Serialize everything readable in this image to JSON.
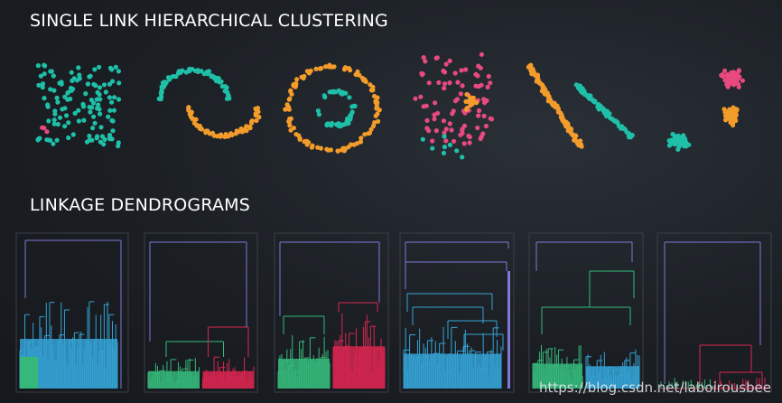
{
  "section_titles": {
    "clustering": "SINGLE LINK HIERARCHICAL CLUSTERING",
    "dendrograms": "LINKAGE DENDROGRAMS"
  },
  "watermark": "https://blog.csdn.net/laboirousbee",
  "colors": {
    "background": "#1b1f24",
    "teal": "#1fbfa8",
    "orange": "#f39c2b",
    "pink": "#e84a7f",
    "blue": "#35a3d6",
    "green": "#35b97a",
    "crimson": "#d82650",
    "purple": "#7f78d8",
    "panel_border": "#3a4048"
  },
  "scatter_plots": [
    {
      "name": "uniform-square",
      "clusters": [
        "teal",
        "pink"
      ]
    },
    {
      "name": "two-moons",
      "clusters": [
        "teal",
        "orange"
      ]
    },
    {
      "name": "concentric-circles",
      "clusters": [
        "orange",
        "teal"
      ]
    },
    {
      "name": "noisy-blobs",
      "clusters": [
        "pink",
        "orange",
        "teal"
      ]
    },
    {
      "name": "anisotropic-lines",
      "clusters": [
        "orange",
        "teal"
      ]
    },
    {
      "name": "three-blobs",
      "clusters": [
        "pink",
        "orange",
        "teal"
      ]
    }
  ],
  "dendrograms": [
    {
      "name": "dendrogram-uniform",
      "colors": [
        "green",
        "blue"
      ]
    },
    {
      "name": "dendrogram-moons",
      "colors": [
        "green",
        "crimson"
      ]
    },
    {
      "name": "dendrogram-circles",
      "colors": [
        "green",
        "crimson"
      ]
    },
    {
      "name": "dendrogram-blobs",
      "colors": [
        "blue",
        "purple"
      ]
    },
    {
      "name": "dendrogram-lines",
      "colors": [
        "green",
        "blue"
      ]
    },
    {
      "name": "dendrogram-three-blobs",
      "colors": [
        "purple",
        "crimson"
      ]
    }
  ]
}
